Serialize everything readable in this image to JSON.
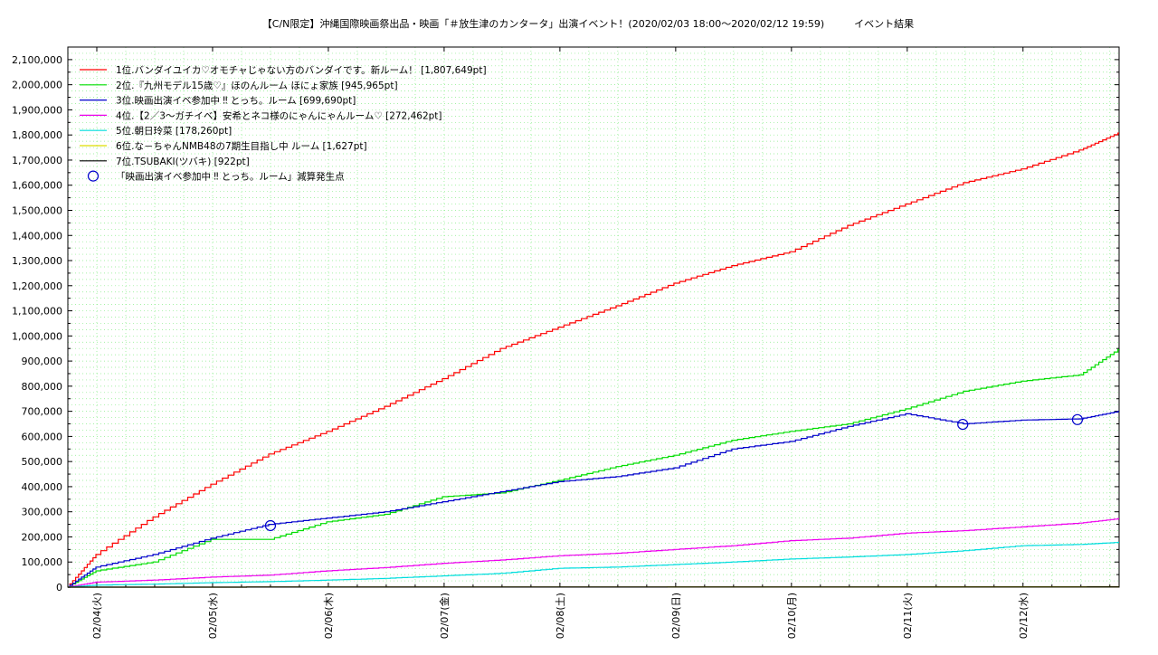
{
  "chart_data": {
    "type": "line",
    "title": "【C/N限定】沖縄国際映画祭出品・映画「＃放生津のカンタータ」出演イベント！(2020/02/03 18:00〜2020/02/12 19:59)　　　イベント結果",
    "xlabel": "",
    "ylabel": "",
    "ylim": [
      0,
      2150000
    ],
    "grid": true,
    "legend_position": "top-left",
    "x_ticks": [
      "02/04(火)",
      "02/05(水)",
      "02/06(木)",
      "02/07(金)",
      "02/08(土)",
      "02/09(日)",
      "02/10(月)",
      "02/11(火)",
      "02/12(水)"
    ],
    "y_ticks": [
      "0",
      "100,000",
      "200,000",
      "300,000",
      "400,000",
      "500,000",
      "600,000",
      "700,000",
      "800,000",
      "900,000",
      "1,000,000",
      "1,100,000",
      "1,200,000",
      "1,300,000",
      "1,400,000",
      "1,500,000",
      "1,600,000",
      "1,700,000",
      "1,800,000",
      "1,900,000",
      "2,000,000",
      "2,100,000"
    ],
    "x_unit_note": "days since 2020/02/04 00:00",
    "x_range": [
      -0.25,
      8.83
    ],
    "series": [
      {
        "name": "1位.バンダイユイカ♡オモチャじゃない方のバンダイです。新ルーム！ [1,807,649pt]",
        "color": "#ff0000",
        "x": [
          -0.25,
          0,
          0.5,
          1,
          1.5,
          2,
          2.5,
          3,
          3.5,
          4,
          4.5,
          5,
          5.5,
          6,
          6.5,
          7,
          7.5,
          8,
          8.5,
          8.83
        ],
        "y": [
          0,
          130000,
          280000,
          410000,
          530000,
          620000,
          720000,
          830000,
          950000,
          1035000,
          1120000,
          1210000,
          1280000,
          1335000,
          1440000,
          1525000,
          1610000,
          1665000,
          1740000,
          1807649
        ]
      },
      {
        "name": "2位.『九州モデル15歳♡』ほのんルーム ほにょ家族 [945,965pt]",
        "color": "#00dd00",
        "x": [
          -0.25,
          0,
          0.5,
          1,
          1.5,
          2,
          2.5,
          3,
          3.5,
          4,
          4.5,
          5,
          5.5,
          6,
          6.5,
          7,
          7.5,
          8,
          8.5,
          8.83
        ],
        "y": [
          0,
          65000,
          100000,
          190000,
          190000,
          260000,
          290000,
          360000,
          375000,
          425000,
          480000,
          525000,
          585000,
          620000,
          650000,
          710000,
          780000,
          820000,
          845000,
          945965
        ]
      },
      {
        "name": "3位.映画出演イベ参加中 ‼ とっち。ルーム [699,690pt]",
        "color": "#0000cc",
        "x": [
          -0.25,
          0,
          0.5,
          1,
          1.5,
          2,
          2.5,
          3,
          3.5,
          4,
          4.5,
          5,
          5.5,
          6,
          6.5,
          7,
          7.5,
          8,
          8.5,
          8.83
        ],
        "y": [
          0,
          80000,
          130000,
          195000,
          250000,
          275000,
          300000,
          340000,
          380000,
          420000,
          440000,
          475000,
          550000,
          580000,
          640000,
          690000,
          650000,
          665000,
          670000,
          699690
        ]
      },
      {
        "name": "4位.【2／3〜ガチイベ】安希とネコ様のにゃんにゃんルーム♡ [272,462pt]",
        "color": "#ee00ee",
        "x": [
          -0.25,
          0,
          0.5,
          1,
          1.5,
          2,
          2.5,
          3,
          3.5,
          4,
          4.5,
          5,
          5.5,
          6,
          6.5,
          7,
          7.5,
          8,
          8.5,
          8.83
        ],
        "y": [
          0,
          20000,
          28000,
          40000,
          48000,
          65000,
          78000,
          95000,
          108000,
          125000,
          135000,
          150000,
          165000,
          185000,
          195000,
          215000,
          225000,
          240000,
          255000,
          272462
        ]
      },
      {
        "name": "5位.朝日玲菜 [178,260pt]",
        "color": "#00dddd",
        "x": [
          -0.25,
          0,
          0.5,
          1,
          1.5,
          2,
          2.5,
          3,
          3.5,
          4,
          4.5,
          5,
          5.5,
          6,
          6.5,
          7,
          7.5,
          8,
          8.5,
          8.83
        ],
        "y": [
          0,
          8000,
          12000,
          18000,
          22000,
          28000,
          35000,
          45000,
          55000,
          75000,
          80000,
          90000,
          100000,
          112000,
          120000,
          130000,
          145000,
          165000,
          170000,
          178260
        ]
      },
      {
        "name": "6位.な－ちゃんNMB48の7期生目指し中 ルーム [1,627pt]",
        "color": "#dddd00",
        "x": [
          -0.25,
          8.83
        ],
        "y": [
          0,
          1627
        ]
      },
      {
        "name": "7位.TSUBAKI(ツバキ) [922pt]",
        "color": "#000000",
        "x": [
          -0.25,
          8.83
        ],
        "y": [
          0,
          922
        ]
      }
    ],
    "markers": {
      "name": "「映画出演イベ参加中 ‼ とっち。ルーム」減算発生点",
      "color": "#0000cc",
      "points": [
        {
          "x": 1.5,
          "y": 245000
        },
        {
          "x": 7.48,
          "y": 648000
        },
        {
          "x": 8.47,
          "y": 667000
        }
      ]
    }
  }
}
